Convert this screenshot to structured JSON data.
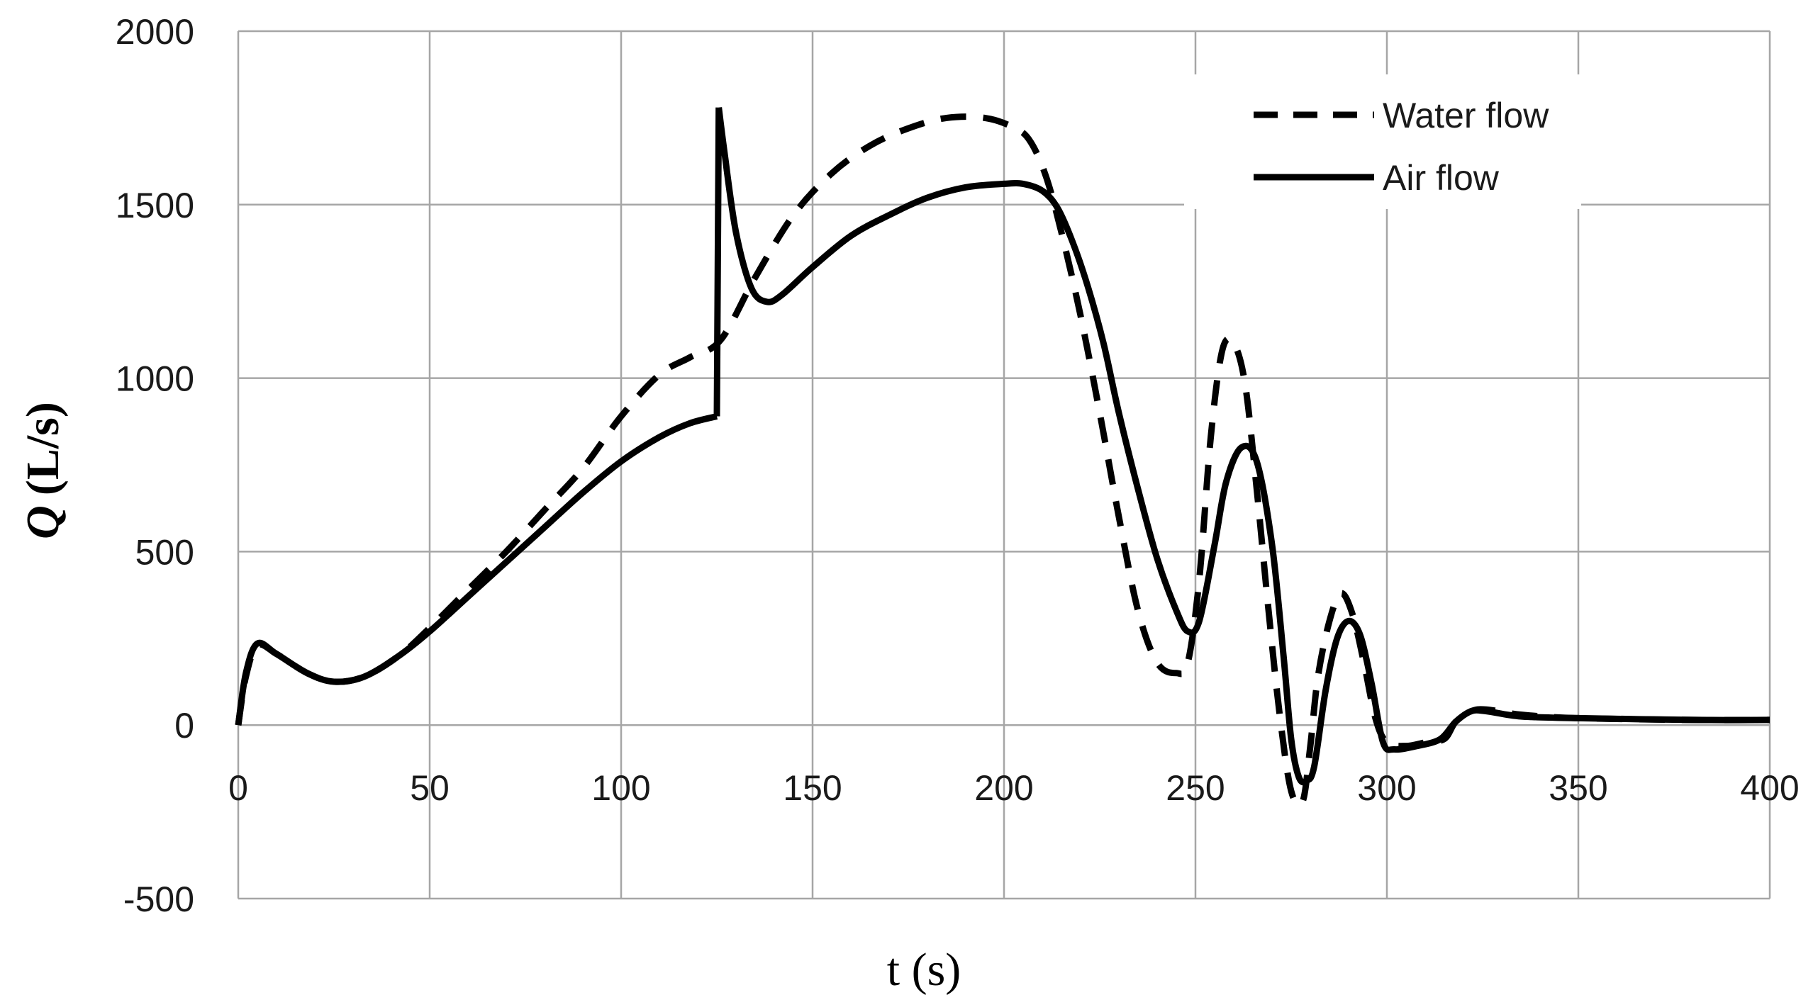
{
  "chart_data": {
    "type": "line",
    "title": "",
    "xlabel": "t (s)",
    "ylabel": {
      "symbol": "Q",
      "unit": "(L/s)"
    },
    "xlim": [
      0,
      400
    ],
    "ylim": [
      -500,
      2000
    ],
    "xticks": [
      0,
      50,
      100,
      150,
      200,
      250,
      300,
      350,
      400
    ],
    "yticks": [
      -500,
      0,
      500,
      1000,
      1500,
      2000
    ],
    "grid": true,
    "legend_position": "top-right",
    "series": [
      {
        "name": "Water flow",
        "style": "dashed",
        "color": "#000000",
        "x": [
          0,
          2,
          5,
          10,
          18,
          25,
          33,
          42,
          50,
          60,
          70,
          80,
          90,
          100,
          110,
          118,
          126,
          135,
          145,
          155,
          165,
          175,
          185,
          195,
          203,
          207,
          211,
          215,
          220,
          225,
          230,
          235,
          240,
          245,
          248,
          251,
          254,
          257,
          260,
          263,
          266,
          269,
          272,
          275,
          278,
          280,
          282,
          285,
          288,
          291,
          294,
          297,
          300,
          305,
          310,
          315,
          318,
          322,
          326,
          335,
          350,
          380,
          400
        ],
        "y": [
          0,
          140,
          230,
          205,
          150,
          125,
          140,
          200,
          280,
          390,
          500,
          620,
          740,
          890,
          1010,
          1060,
          1110,
          1290,
          1470,
          1590,
          1670,
          1720,
          1750,
          1750,
          1720,
          1680,
          1580,
          1420,
          1180,
          900,
          600,
          330,
          180,
          150,
          180,
          420,
          830,
          1080,
          1100,
          980,
          680,
          340,
          30,
          -190,
          -220,
          -60,
          140,
          300,
          380,
          320,
          180,
          20,
          -50,
          -60,
          -50,
          -40,
          10,
          40,
          45,
          30,
          20,
          15,
          15
        ]
      },
      {
        "name": "Air flow",
        "style": "solid",
        "color": "#000000",
        "x": [
          0,
          2,
          5,
          10,
          18,
          25,
          33,
          42,
          50,
          60,
          70,
          80,
          90,
          100,
          110,
          118,
          125,
          125.5,
          127,
          130,
          134,
          138,
          142,
          150,
          160,
          170,
          180,
          190,
          200,
          205,
          210,
          214,
          218,
          222,
          226,
          230,
          235,
          240,
          245,
          248,
          251,
          255,
          258,
          262,
          266,
          270,
          273,
          275,
          277,
          279,
          281,
          284,
          287,
          290,
          293,
          296,
          299,
          302,
          308,
          314,
          318,
          322,
          326,
          335,
          350,
          380,
          400
        ],
        "y": [
          0,
          150,
          235,
          205,
          150,
          125,
          140,
          200,
          270,
          370,
          470,
          570,
          670,
          760,
          830,
          870,
          890,
          1780,
          1650,
          1420,
          1260,
          1220,
          1240,
          1320,
          1410,
          1470,
          1520,
          1550,
          1560,
          1560,
          1540,
          1490,
          1390,
          1260,
          1100,
          900,
          680,
          480,
          330,
          270,
          300,
          520,
          700,
          800,
          760,
          520,
          200,
          -40,
          -150,
          -160,
          -120,
          100,
          250,
          300,
          260,
          120,
          -50,
          -70,
          -60,
          -40,
          10,
          40,
          40,
          25,
          20,
          15,
          15
        ]
      }
    ]
  }
}
